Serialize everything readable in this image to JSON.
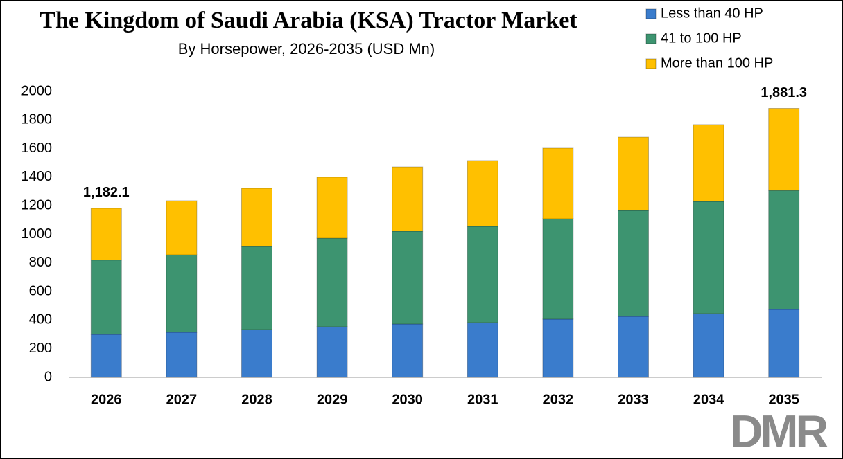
{
  "chart_data": {
    "type": "stacked-bar",
    "title": "The Kingdom of Saudi Arabia (KSA) Tractor Market",
    "subtitle": "By Horsepower, 2026-2035 (USD Mn)",
    "categories": [
      "2026",
      "2027",
      "2028",
      "2029",
      "2030",
      "2031",
      "2032",
      "2033",
      "2034",
      "2035"
    ],
    "series": [
      {
        "name": "Less than 40 HP",
        "color": "#3a7ccc",
        "values": [
          300,
          315,
          334,
          354,
          373,
          383,
          407,
          426,
          446,
          475
        ]
      },
      {
        "name": "41 to 100 HP",
        "color": "#3d9470",
        "values": [
          520,
          542,
          581,
          619,
          649,
          673,
          702,
          741,
          784,
          832
        ]
      },
      {
        "name": "More than 100 HP",
        "color": "#ffc000",
        "values": [
          362.1,
          378,
          407,
          427,
          450,
          460,
          494,
          513,
          538,
          574.3
        ]
      }
    ],
    "annotations": [
      {
        "category": "2026",
        "value": 1182.1,
        "label": "1,182.1"
      },
      {
        "category": "2035",
        "value": 1881.3,
        "label": "1,881.3"
      }
    ],
    "ylim": [
      0,
      2000
    ],
    "yticks": [
      0,
      200,
      400,
      600,
      800,
      1000,
      1200,
      1400,
      1600,
      1800,
      2000
    ],
    "grid": false,
    "legend": "top-right",
    "logo": "DMR"
  }
}
